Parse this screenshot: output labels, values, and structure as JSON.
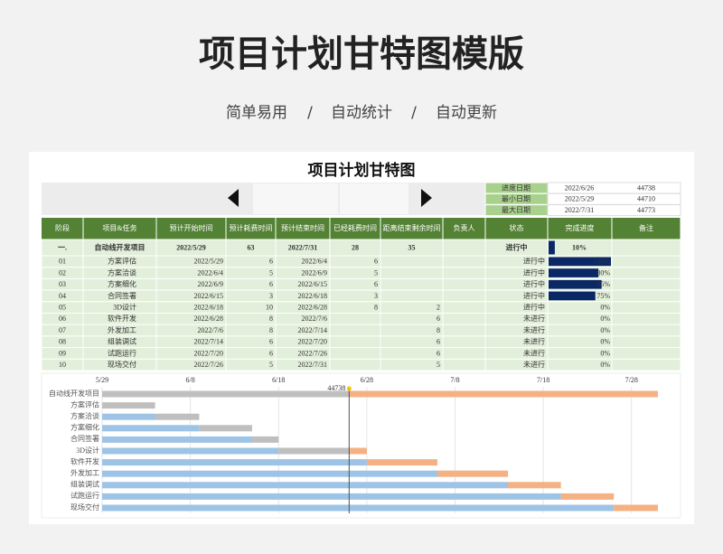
{
  "header": {
    "title": "项目计划甘特图模版",
    "subtitle": [
      "简单易用",
      "/",
      "自动统计",
      "/",
      "自动更新"
    ]
  },
  "sheet": {
    "title": "项目计划甘特图",
    "info": [
      [
        "进度日期",
        "2022/6/26",
        44738
      ],
      [
        "最小日期",
        "2022/5/29",
        44710
      ],
      [
        "最大日期",
        "2022/7/31",
        44773
      ]
    ],
    "columns": [
      "阶段",
      "项目&任务",
      "预计开始时间",
      "预计耗费时间",
      "预计结束时间",
      "已经耗费时间",
      "距离结束剩余时间",
      "负责人",
      "状态",
      "完成进度",
      "备注"
    ],
    "summary": [
      "一.",
      "自动线开发项目",
      "2022/5/29",
      63,
      "2022/7/31",
      28,
      35,
      null,
      "进行中",
      {
        "value": 10,
        "label": "10%"
      },
      null
    ],
    "rows": [
      [
        "01",
        "方案评估",
        "2022/5/29",
        6,
        "2022/6/4",
        6,
        null,
        null,
        "进行中",
        {
          "value": 100,
          "label": "100%"
        },
        null
      ],
      [
        "02",
        "方案洽谈",
        "2022/6/4",
        5,
        "2022/6/9",
        5,
        null,
        null,
        "进行中",
        {
          "value": 80,
          "label": "80%"
        },
        null
      ],
      [
        "03",
        "方案细化",
        "2022/6/9",
        6,
        "2022/6/15",
        6,
        null,
        null,
        "进行中",
        {
          "value": 85,
          "label": "85%"
        },
        null
      ],
      [
        "04",
        "合同签署",
        "2022/6/15",
        3,
        "2022/6/18",
        3,
        null,
        null,
        "进行中",
        {
          "value": 75,
          "label": "75%"
        },
        null
      ],
      [
        "05",
        "3D设计",
        "2022/6/18",
        10,
        "2022/6/28",
        8,
        2,
        null,
        "进行中",
        {
          "value": 0,
          "label": "0%"
        },
        null
      ],
      [
        "06",
        "软件开发",
        "2022/6/28",
        8,
        "2022/7/6",
        null,
        6,
        null,
        "未进行",
        {
          "value": 0,
          "label": "0%"
        },
        null
      ],
      [
        "07",
        "外发加工",
        "2022/7/6",
        8,
        "2022/7/14",
        null,
        8,
        null,
        "未进行",
        {
          "value": 0,
          "label": "0%"
        },
        null
      ],
      [
        "08",
        "组装调试",
        "2022/7/14",
        6,
        "2022/7/20",
        null,
        6,
        null,
        "未进行",
        {
          "value": 0,
          "label": "0%"
        },
        null
      ],
      [
        "09",
        "试跑运行",
        "2022/7/20",
        6,
        "2022/7/26",
        null,
        6,
        null,
        "未进行",
        {
          "value": 0,
          "label": "0%"
        },
        null
      ],
      [
        "10",
        "现场交付",
        "2022/7/26",
        5,
        "2022/7/31",
        null,
        5,
        null,
        "未进行",
        {
          "value": 0,
          "label": "0%"
        },
        null
      ]
    ]
  },
  "gantt": {
    "ticks": [
      "5/29",
      "6/8",
      "6/18",
      "6/28",
      "7/8",
      "7/18",
      "7/28"
    ]
  }
}
